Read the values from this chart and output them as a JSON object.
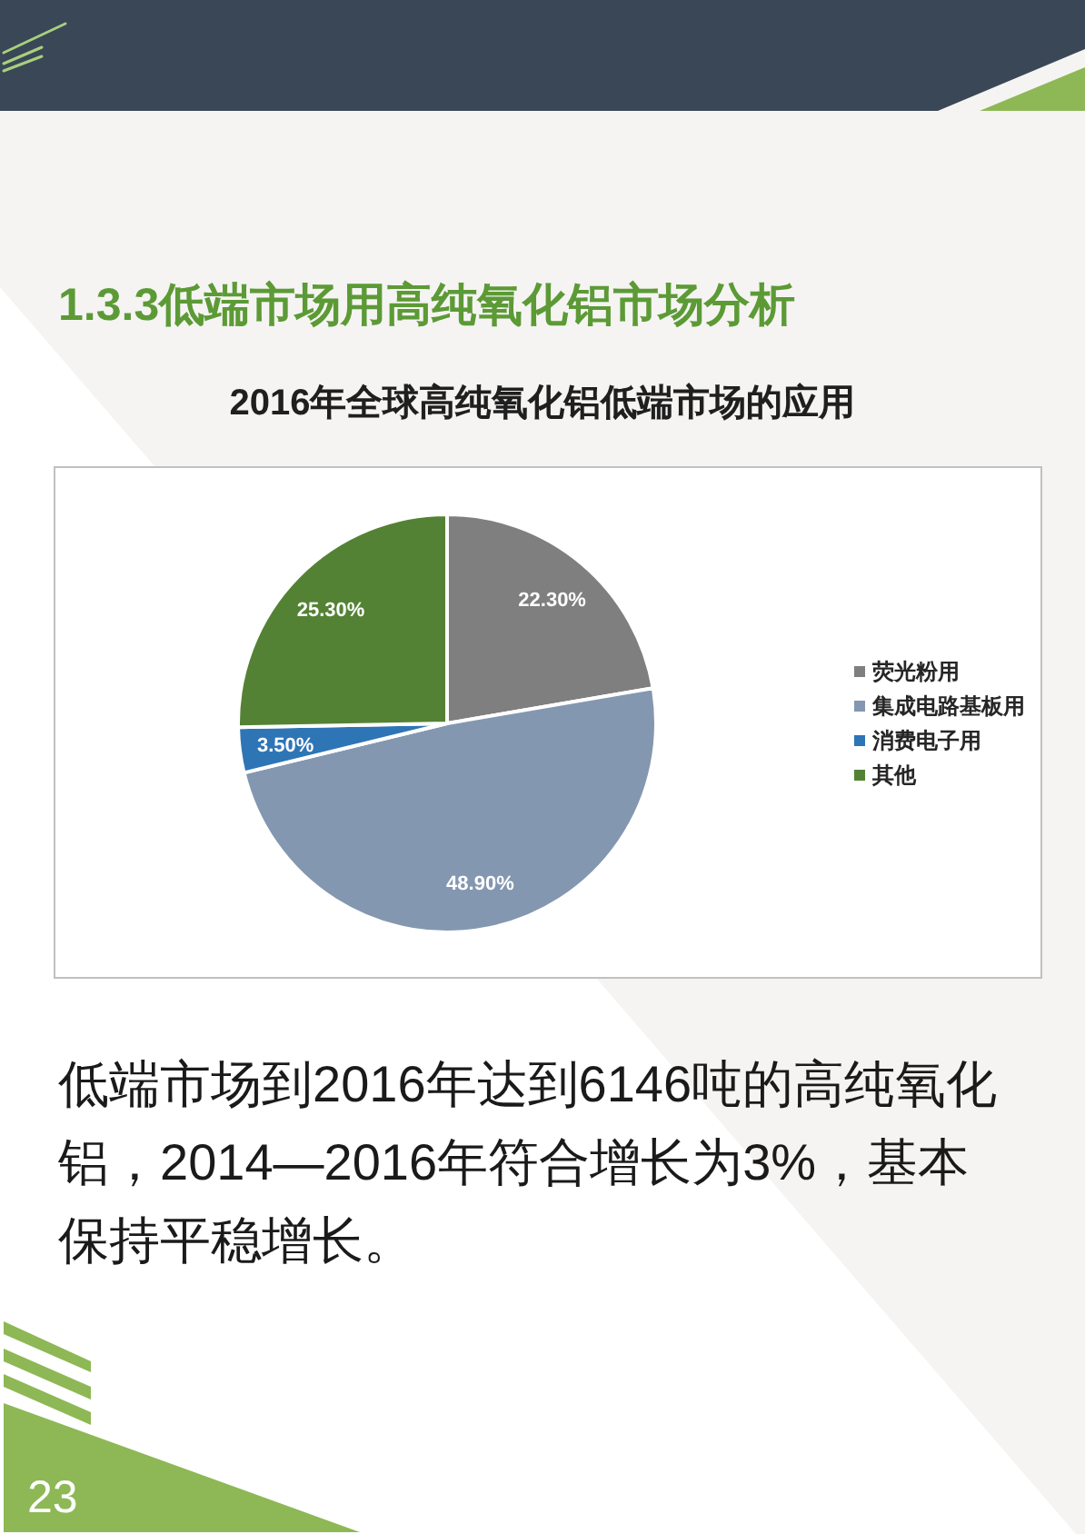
{
  "chart_data": {
    "type": "pie",
    "title": "1.3.3低端市场用高纯氧化铝市场分析",
    "subtitle": "2016年全球高纯氧化铝低端市场的应用",
    "categories": [
      "荧光粉用",
      "集成电路基板用",
      "消费电子用",
      "其他"
    ],
    "values": [
      22.3,
      48.9,
      3.5,
      25.3
    ],
    "colors": [
      "#7f7f7f",
      "#8497b0",
      "#2e75b6",
      "#548235"
    ],
    "value_labels": [
      "22.30%",
      "48.90%",
      "3.50%",
      "25.30%"
    ],
    "legend": "right",
    "annotations": [
      "低端市场到2016年达到6146吨的高纯氧化铝，2014—2016年符合增长为3%，基本保持平稳增长。",
      "23"
    ]
  }
}
